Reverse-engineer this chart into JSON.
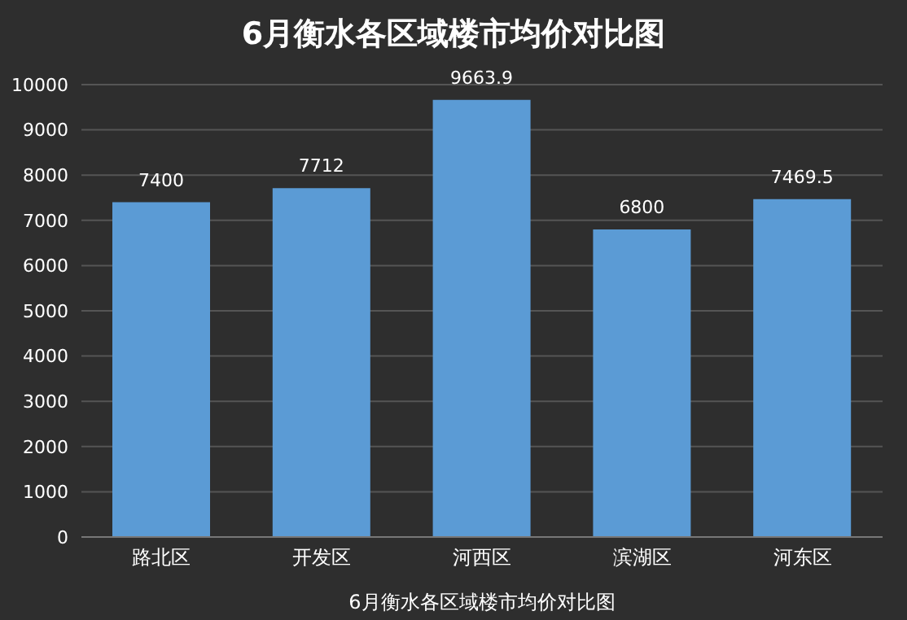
{
  "chart_data": {
    "type": "bar",
    "title": "6月衡水各区域楼市均价对比图",
    "xlabel": "6月衡水各区域楼市均价对比图",
    "categories": [
      "路北区",
      "开发区",
      "河西区",
      "滨湖区",
      "河东区"
    ],
    "values": [
      7400,
      7712,
      9663.9,
      6800,
      7469.5
    ],
    "color": "#5b9bd5",
    "data_labels": true,
    "grid": "y",
    "ylim": [
      0,
      10000
    ],
    "yticks": [
      0,
      1000,
      2000,
      3000,
      4000,
      5000,
      6000,
      7000,
      8000,
      9000,
      10000
    ]
  }
}
